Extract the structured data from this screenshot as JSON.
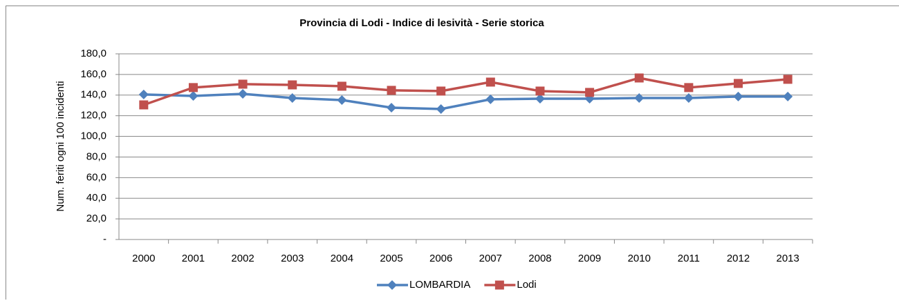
{
  "chart_data": {
    "type": "line",
    "title": "Provincia di Lodi - Indice di lesività  - Serie storica",
    "y_label": "Num. feriti ogni 100 incidenti",
    "categories": [
      "2000",
      "2001",
      "2002",
      "2003",
      "2004",
      "2005",
      "2006",
      "2007",
      "2008",
      "2009",
      "2010",
      "2011",
      "2012",
      "2013"
    ],
    "series": [
      {
        "name": "LOMBARDIA",
        "color": "#4f81bd",
        "marker": "diamond",
        "values": [
          140.6,
          139.2,
          141.2,
          137.2,
          135.2,
          127.8,
          126.5,
          135.9,
          136.5,
          136.5,
          137.2,
          137.2,
          138.6,
          138.6
        ]
      },
      {
        "name": "Lodi",
        "color": "#c0504d",
        "marker": "square",
        "values": [
          130.5,
          147.3,
          150.6,
          149.9,
          148.6,
          144.6,
          143.9,
          152.6,
          143.9,
          142.6,
          156.6,
          147.3,
          151.3,
          155.3
        ]
      }
    ],
    "ylim": [
      0,
      180
    ],
    "yticks": [
      {
        "value": 0,
        "label": "-"
      },
      {
        "value": 20,
        "label": "20,0"
      },
      {
        "value": 40,
        "label": "40,0"
      },
      {
        "value": 60,
        "label": "60,0"
      },
      {
        "value": 80,
        "label": "80,0"
      },
      {
        "value": 100,
        "label": "100,0"
      },
      {
        "value": 120,
        "label": "120,0"
      },
      {
        "value": 140,
        "label": "140,0"
      },
      {
        "value": 160,
        "label": "160,0"
      },
      {
        "value": 180,
        "label": "180,0"
      }
    ],
    "grid": true,
    "legend": "bottom"
  }
}
